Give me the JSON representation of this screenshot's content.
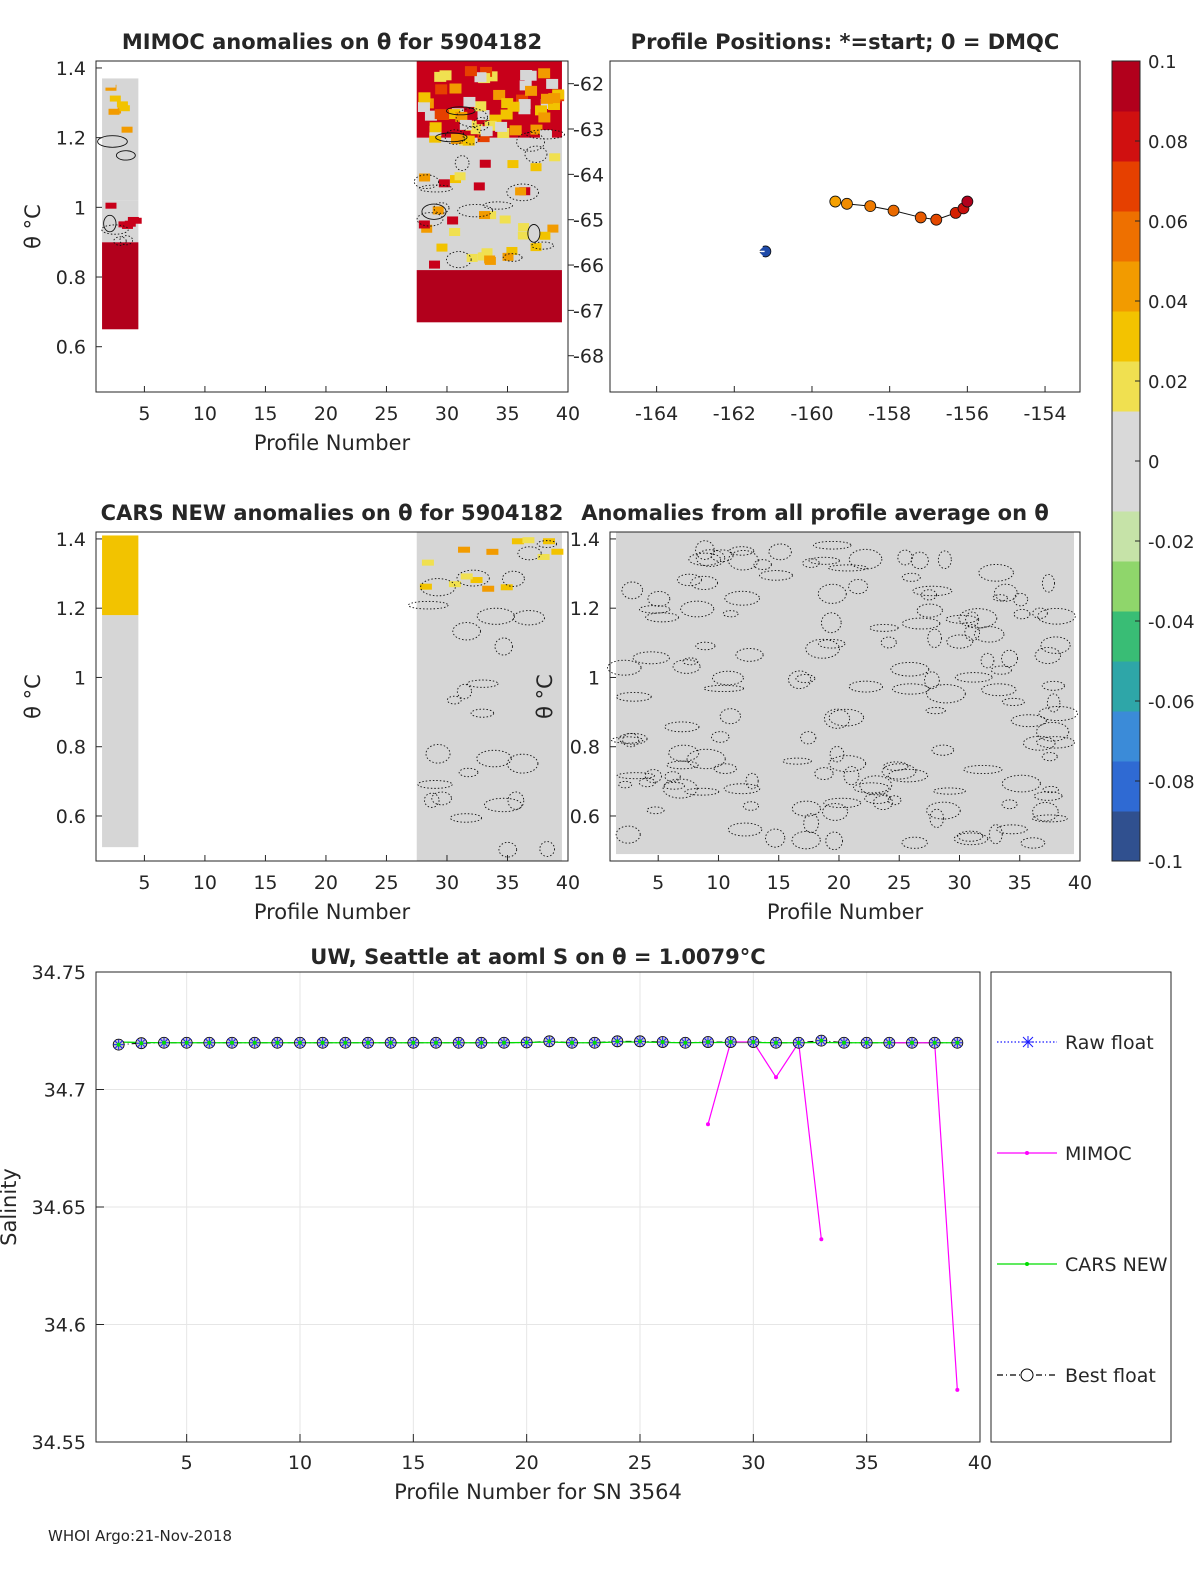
{
  "footer": "WHOI Argo:21-Nov-2018",
  "chart_data": [
    {
      "id": "mimoc",
      "type": "heatmap",
      "title": "MIMOC anomalies on θ  for 5904182",
      "xlabel": "Profile Number",
      "ylabel": "θ °C",
      "xlim": [
        1,
        40
      ],
      "ylim": [
        0.47,
        1.42
      ],
      "xticks": [
        5,
        10,
        15,
        20,
        25,
        30,
        35,
        40
      ],
      "yticks": [
        0.6,
        0.8,
        1,
        1.2,
        1.4
      ],
      "blocks": [
        {
          "x0": 2,
          "x1": 4,
          "ranges": [
            [
              0.65,
              0.9,
              "#b2001c"
            ],
            [
              0.9,
              1.02,
              "#d6d6d6"
            ],
            [
              1.02,
              1.37,
              "#d6d6d6"
            ]
          ]
        },
        {
          "x0": 28,
          "x1": 39,
          "ranges": [
            [
              0.67,
              0.82,
              "#b2001c"
            ],
            [
              0.82,
              1.2,
              "#d6d6d6"
            ],
            [
              1.2,
              1.42,
              "#c8001a"
            ]
          ]
        }
      ]
    },
    {
      "id": "positions",
      "type": "scatter",
      "title": "Profile Positions: *=start; 0 = DMQC",
      "xlim": [
        -165.2,
        -153.1
      ],
      "ylim": [
        -68.8,
        -61.5
      ],
      "xticks": [
        -164,
        -162,
        -160,
        -158,
        -156,
        -154
      ],
      "yticks": [
        -62,
        -63,
        -64,
        -65,
        -66,
        -67,
        -68
      ],
      "start": {
        "lon": -161.4,
        "lat": -65.7,
        "color": "#1f4aa8"
      },
      "points": [
        {
          "lon": -161.2,
          "lat": -65.7,
          "color": "#1f4aa8"
        },
        {
          "lon": -159.4,
          "lat": -64.6,
          "color": "#f5a000"
        },
        {
          "lon": -159.1,
          "lat": -64.65,
          "color": "#f08c00"
        },
        {
          "lon": -158.5,
          "lat": -64.7,
          "color": "#ee7a00"
        },
        {
          "lon": -157.9,
          "lat": -64.8,
          "color": "#ea6a00"
        },
        {
          "lon": -157.2,
          "lat": -64.95,
          "color": "#e85a00"
        },
        {
          "lon": -156.8,
          "lat": -65.0,
          "color": "#e44800"
        },
        {
          "lon": -156.3,
          "lat": -64.85,
          "color": "#d42000"
        },
        {
          "lon": -156.1,
          "lat": -64.75,
          "color": "#c8100c"
        },
        {
          "lon": -156.0,
          "lat": -64.6,
          "color": "#b2001c"
        }
      ]
    },
    {
      "id": "cars",
      "type": "heatmap",
      "title": "CARS NEW anomalies on θ for 5904182",
      "xlabel": "Profile Number",
      "ylabel": "θ °C",
      "xlim": [
        1,
        40
      ],
      "ylim": [
        0.47,
        1.42
      ],
      "xticks": [
        5,
        10,
        15,
        20,
        25,
        30,
        35,
        40
      ],
      "yticks": [
        0.6,
        0.8,
        1,
        1.2,
        1.4
      ],
      "blocks": [
        {
          "x0": 2,
          "x1": 4,
          "ranges": [
            [
              0.51,
              1.18,
              "#d6d6d6"
            ],
            [
              1.18,
              1.41,
              "#f2c300"
            ]
          ]
        },
        {
          "x0": 28,
          "x1": 39,
          "ranges": [
            [
              0.47,
              1.42,
              "#d6d6d6"
            ]
          ]
        }
      ]
    },
    {
      "id": "avg",
      "type": "heatmap",
      "title": "Anomalies from all profile average on θ",
      "xlabel": "Profile Number",
      "ylabel": "θ °C",
      "xlim": [
        1,
        40
      ],
      "ylim": [
        0.47,
        1.42
      ],
      "xticks": [
        5,
        10,
        15,
        20,
        25,
        30,
        35,
        40
      ],
      "yticks": [
        0.6,
        0.8,
        1,
        1.2,
        1.4
      ],
      "blocks": [
        {
          "x0": 2,
          "x1": 39,
          "ranges": [
            [
              0.49,
              1.42,
              "#d6d6d6"
            ]
          ]
        }
      ]
    },
    {
      "id": "colorbar",
      "type": "colorbar",
      "range": [
        -0.1,
        0.1
      ],
      "ticks": [
        "0.1",
        "0.08",
        "0.06",
        "0.04",
        "0.02",
        "0",
        "-0.02",
        "-0.04",
        "-0.06",
        "-0.08",
        "-0.1"
      ],
      "colors": [
        "#30508f",
        "#2f6ad3",
        "#3b8bd8",
        "#2ea6a8",
        "#39bd75",
        "#8fd66b",
        "#c6e3a8",
        "#d9d9d9",
        "#d9d9d9",
        "#f0e050",
        "#f3c300",
        "#f29b00",
        "#ee7000",
        "#e64000",
        "#d01010",
        "#b2001c"
      ]
    },
    {
      "id": "salinity",
      "type": "line",
      "title": "UW, Seattle at aoml S on θ = 1.0079°C",
      "xlabel": "Profile Number for SN 3564",
      "ylabel": "Salinity",
      "xlim": [
        1,
        40
      ],
      "ylim": [
        34.55,
        34.75
      ],
      "xticks": [
        5,
        10,
        15,
        20,
        25,
        30,
        35,
        40
      ],
      "yticks": [
        "34.55",
        "34.6",
        "34.65",
        "34.7",
        "34.75"
      ],
      "legend": [
        "Raw float",
        "MIMOC",
        "CARS NEW",
        "Best float"
      ],
      "series": [
        {
          "name": "Raw float",
          "color": "#1a1aff",
          "x": [
            2,
            3,
            4,
            5,
            6,
            7,
            8,
            9,
            10,
            11,
            12,
            13,
            14,
            15,
            16,
            17,
            18,
            19,
            20,
            21,
            22,
            23,
            24,
            25,
            26,
            27,
            28,
            29,
            30,
            31,
            32,
            33,
            34,
            35,
            36,
            37,
            38,
            39
          ],
          "y": [
            34.7191,
            34.7197,
            34.7199,
            34.7199,
            34.7199,
            34.7199,
            34.7199,
            34.7199,
            34.7199,
            34.7199,
            34.7199,
            34.7199,
            34.7199,
            34.7199,
            34.7199,
            34.7199,
            34.7199,
            34.7199,
            34.72,
            34.7205,
            34.7199,
            34.7199,
            34.7205,
            34.7205,
            34.7202,
            34.7199,
            34.7202,
            34.7202,
            34.7202,
            34.7199,
            34.7199,
            34.7208,
            34.7199,
            34.7199,
            34.7199,
            34.7199,
            34.7199,
            34.7199
          ]
        },
        {
          "name": "MIMOC",
          "color": "#ff00ff",
          "x": [
            28,
            29,
            30,
            31,
            32,
            33,
            36,
            37,
            38,
            39
          ],
          "y": [
            34.6852,
            34.7202,
            34.7202,
            34.7052,
            34.7199,
            34.6363,
            34.7199,
            34.7199,
            34.7199,
            34.5722
          ]
        },
        {
          "name": "CARS NEW",
          "color": "#00dd00",
          "x": [
            2,
            3,
            4,
            5,
            6,
            7,
            8,
            9,
            10,
            11,
            12,
            13,
            14,
            15,
            16,
            17,
            18,
            19,
            20,
            21,
            22,
            23,
            24,
            25,
            26,
            27,
            28,
            29,
            30,
            31,
            32,
            33,
            34,
            35,
            36,
            37,
            38,
            39
          ],
          "y": [
            34.7202,
            34.72,
            34.7199,
            34.7199,
            34.7199,
            34.7199,
            34.7199,
            34.7199,
            34.7199,
            34.7199,
            34.7199,
            34.7199,
            34.7199,
            34.7199,
            34.7199,
            34.7199,
            34.7199,
            34.7199,
            34.72,
            34.7202,
            34.7199,
            34.7199,
            34.7202,
            34.7202,
            34.72,
            34.7199,
            34.72,
            34.72,
            34.72,
            34.7199,
            34.7199,
            34.72,
            34.7199,
            34.7199,
            34.7199,
            34.7199,
            34.7199,
            34.7199
          ]
        }
      ]
    }
  ]
}
